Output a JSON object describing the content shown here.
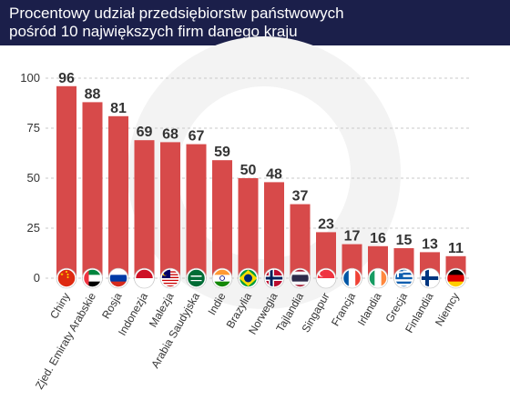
{
  "header": {
    "title_line1": "Procentowy udział przedsiębiorstw państwowych",
    "title_line2": "pośród 10 największych firm danego kraju"
  },
  "colors": {
    "bar": "#d74a4a",
    "header_bg": "#1b1f4a",
    "grid": "#c8c8c8",
    "text": "#333333"
  },
  "chart_data": {
    "type": "bar",
    "title": "Procentowy udział przedsiębiorstw państwowych pośród 10 największych firm danego kraju",
    "categories": [
      "Chiny",
      "Zjed. Emiraty Arabskie",
      "Rosja",
      "Indonezja",
      "Malezja",
      "Arabia Saudyjska",
      "Indie",
      "Brazylia",
      "Norwegia",
      "Tajlandia",
      "Singapur",
      "Francja",
      "Irlandia",
      "Grecja",
      "Finlandia",
      "Niemcy"
    ],
    "values": [
      96,
      88,
      81,
      69,
      68,
      67,
      59,
      50,
      48,
      37,
      23,
      17,
      16,
      15,
      13,
      11
    ],
    "value_labels": [
      "96",
      "88",
      "81",
      "69",
      "68",
      "67",
      "59",
      "50",
      "48",
      "37",
      "23",
      "17",
      "16",
      "15",
      "13",
      "11"
    ],
    "yticks": [
      "0",
      "25",
      "50",
      "75",
      "100"
    ],
    "ylim": [
      0,
      100
    ],
    "grid": true,
    "flags": [
      "flag-china-icon",
      "flag-uae-icon",
      "flag-russia-icon",
      "flag-indonesia-icon",
      "flag-malaysia-icon",
      "flag-saudi-arabia-icon",
      "flag-india-icon",
      "flag-brazil-icon",
      "flag-norway-icon",
      "flag-thailand-icon",
      "flag-singapore-icon",
      "flag-france-icon",
      "flag-ireland-icon",
      "flag-greece-icon",
      "flag-finland-icon",
      "flag-germany-icon"
    ]
  }
}
